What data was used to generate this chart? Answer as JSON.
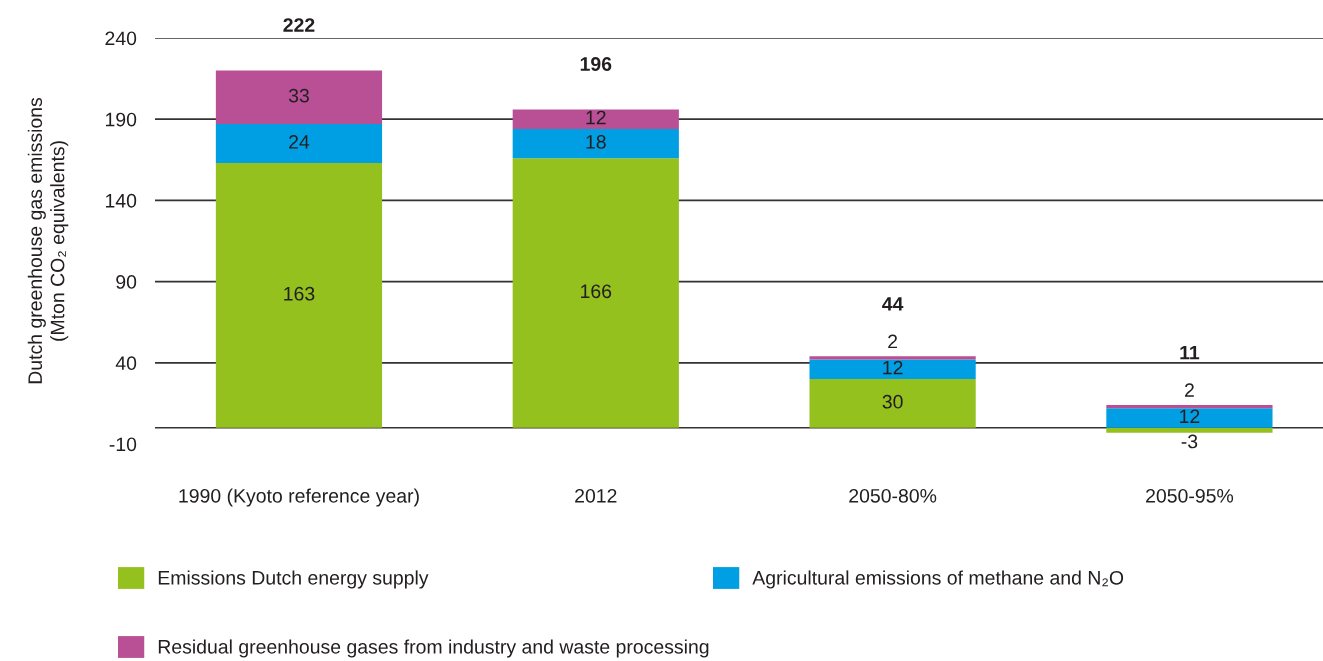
{
  "chart_data": {
    "type": "bar",
    "stacked": true,
    "ylabel": "Dutch greenhouse gas emissions\n(Mton CO₂ equivalents)",
    "categories": [
      "1990 (Kyoto reference year)",
      "2012",
      "2050-80%",
      "2050-95%"
    ],
    "series": [
      {
        "name": "Emissions Dutch energy supply",
        "color": "#95c11f",
        "values": [
          163,
          166,
          30,
          -3
        ]
      },
      {
        "name": "Agricultural emissions of methane and N₂O",
        "color": "#009fe3",
        "values": [
          24,
          18,
          12,
          12
        ]
      },
      {
        "name": "Residual greenhouse gases from industry and waste processing",
        "color": "#b95095",
        "values": [
          33,
          12,
          2,
          2
        ]
      }
    ],
    "totals": [
      "222",
      "196",
      "44",
      "11"
    ],
    "data_labels": true,
    "ylim": [
      -10,
      240
    ],
    "yticks": [
      -10,
      40,
      90,
      140,
      190,
      240
    ],
    "grid": "y",
    "ref_lines": [
      {
        "axis": "y",
        "value": 0,
        "color": "#333333"
      }
    ],
    "legend": "bottom"
  }
}
